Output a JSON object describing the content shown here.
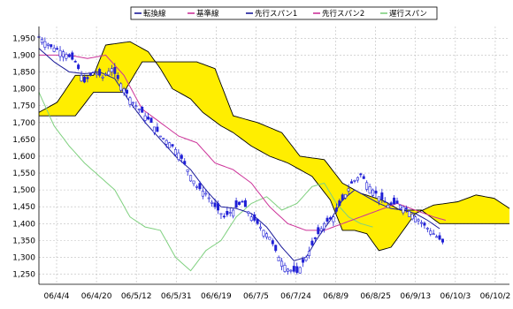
{
  "chart_data": {
    "type": "candlestick-ichimoku",
    "title": "",
    "xlabel": "",
    "ylabel": "",
    "ylim": [
      1220,
      1985
    ],
    "y_ticks": [
      1250,
      1300,
      1350,
      1400,
      1450,
      1500,
      1550,
      1600,
      1650,
      1700,
      1750,
      1800,
      1850,
      1900,
      1950
    ],
    "x_ticks": [
      "06/4/4",
      "06/4/20",
      "06/5/12",
      "06/5/31",
      "06/6/19",
      "06/7/5",
      "06/7/24",
      "06/8/9",
      "06/8/25",
      "06/9/13",
      "06/10/3",
      "06/10/2"
    ],
    "x_count": 155,
    "grid": true,
    "legend": {
      "placement": "top-center",
      "entries": [
        {
          "name": "転換線",
          "color": "#1a1a99"
        },
        {
          "name": "基準線",
          "color": "#cc3399"
        },
        {
          "name": "先行スパン1",
          "color": "#1a1a99"
        },
        {
          "name": "先行スパン2",
          "color": "#cc3399"
        },
        {
          "name": "遅行スパン",
          "color": "#7fd07f"
        }
      ]
    },
    "colors": {
      "candle": "#1f1fd6",
      "cloud_fill": "#ffee00",
      "cloud_edge": "#000000",
      "tenkan": "#1a1a99",
      "kijun": "#cc3399",
      "span2": "#cc3399",
      "chikou": "#7fd07f",
      "grid": "#bdbdbd"
    },
    "close_anchors": [
      [
        0,
        1955
      ],
      [
        4,
        1925
      ],
      [
        8,
        1910
      ],
      [
        12,
        1880
      ],
      [
        15,
        1820
      ],
      [
        18,
        1850
      ],
      [
        21,
        1835
      ],
      [
        24,
        1860
      ],
      [
        26,
        1830
      ],
      [
        28,
        1800
      ],
      [
        31,
        1760
      ],
      [
        34,
        1730
      ],
      [
        37,
        1700
      ],
      [
        40,
        1660
      ],
      [
        43,
        1640
      ],
      [
        46,
        1610
      ],
      [
        49,
        1560
      ],
      [
        52,
        1510
      ],
      [
        55,
        1490
      ],
      [
        58,
        1450
      ],
      [
        61,
        1420
      ],
      [
        64,
        1440
      ],
      [
        67,
        1465
      ],
      [
        70,
        1420
      ],
      [
        73,
        1390
      ],
      [
        76,
        1360
      ],
      [
        79,
        1300
      ],
      [
        82,
        1265
      ],
      [
        85,
        1255
      ],
      [
        88,
        1300
      ],
      [
        91,
        1355
      ],
      [
        94,
        1400
      ],
      [
        97,
        1420
      ],
      [
        100,
        1470
      ],
      [
        103,
        1520
      ],
      [
        106,
        1545
      ],
      [
        109,
        1510
      ],
      [
        112,
        1480
      ],
      [
        115,
        1455
      ],
      [
        118,
        1460
      ],
      [
        121,
        1445
      ],
      [
        124,
        1420
      ],
      [
        127,
        1395
      ],
      [
        130,
        1370
      ],
      [
        133,
        1345
      ]
    ],
    "span2_anchors": [
      [
        0,
        1720
      ],
      [
        12,
        1720
      ],
      [
        18,
        1790
      ],
      [
        28,
        1790
      ],
      [
        34,
        1880
      ],
      [
        52,
        1880
      ],
      [
        58,
        1860
      ],
      [
        64,
        1720
      ],
      [
        72,
        1700
      ],
      [
        80,
        1670
      ],
      [
        86,
        1600
      ],
      [
        94,
        1590
      ],
      [
        100,
        1520
      ],
      [
        106,
        1490
      ],
      [
        113,
        1470
      ],
      [
        119,
        1440
      ],
      [
        126,
        1440
      ],
      [
        132,
        1400
      ],
      [
        138,
        1400
      ],
      [
        146,
        1400
      ],
      [
        155,
        1400
      ]
    ],
    "span1_anchors": [
      [
        0,
        1730
      ],
      [
        6,
        1760
      ],
      [
        12,
        1840
      ],
      [
        18,
        1840
      ],
      [
        22,
        1930
      ],
      [
        30,
        1940
      ],
      [
        36,
        1910
      ],
      [
        40,
        1860
      ],
      [
        44,
        1800
      ],
      [
        50,
        1770
      ],
      [
        54,
        1730
      ],
      [
        60,
        1690
      ],
      [
        64,
        1670
      ],
      [
        70,
        1630
      ],
      [
        76,
        1600
      ],
      [
        82,
        1580
      ],
      [
        86,
        1560
      ],
      [
        90,
        1540
      ],
      [
        96,
        1470
      ],
      [
        100,
        1380
      ],
      [
        104,
        1380
      ],
      [
        108,
        1370
      ],
      [
        112,
        1320
      ],
      [
        116,
        1330
      ],
      [
        120,
        1380
      ],
      [
        124,
        1430
      ],
      [
        130,
        1455
      ],
      [
        138,
        1465
      ],
      [
        144,
        1485
      ],
      [
        150,
        1475
      ],
      [
        155,
        1445
      ]
    ],
    "tenkan_anchors": [
      [
        0,
        1920
      ],
      [
        5,
        1880
      ],
      [
        10,
        1850
      ],
      [
        15,
        1845
      ],
      [
        20,
        1850
      ],
      [
        25,
        1830
      ],
      [
        30,
        1760
      ],
      [
        35,
        1700
      ],
      [
        40,
        1650
      ],
      [
        45,
        1600
      ],
      [
        50,
        1560
      ],
      [
        55,
        1500
      ],
      [
        60,
        1450
      ],
      [
        65,
        1445
      ],
      [
        70,
        1430
      ],
      [
        75,
        1390
      ],
      [
        80,
        1330
      ],
      [
        84,
        1290
      ],
      [
        88,
        1300
      ],
      [
        92,
        1360
      ],
      [
        96,
        1410
      ],
      [
        100,
        1470
      ],
      [
        104,
        1500
      ],
      [
        108,
        1480
      ],
      [
        112,
        1460
      ],
      [
        116,
        1445
      ],
      [
        120,
        1440
      ],
      [
        124,
        1430
      ],
      [
        128,
        1410
      ],
      [
        132,
        1385
      ]
    ],
    "kijun_anchors": [
      [
        0,
        1900
      ],
      [
        10,
        1900
      ],
      [
        16,
        1890
      ],
      [
        22,
        1900
      ],
      [
        28,
        1840
      ],
      [
        34,
        1740
      ],
      [
        40,
        1700
      ],
      [
        46,
        1660
      ],
      [
        52,
        1640
      ],
      [
        58,
        1580
      ],
      [
        64,
        1560
      ],
      [
        70,
        1520
      ],
      [
        76,
        1450
      ],
      [
        82,
        1400
      ],
      [
        88,
        1380
      ],
      [
        94,
        1380
      ],
      [
        100,
        1400
      ],
      [
        106,
        1420
      ],
      [
        112,
        1440
      ],
      [
        118,
        1460
      ],
      [
        124,
        1440
      ],
      [
        130,
        1420
      ],
      [
        134,
        1410
      ]
    ],
    "chikou_anchors": [
      [
        0,
        1790
      ],
      [
        5,
        1690
      ],
      [
        10,
        1630
      ],
      [
        15,
        1580
      ],
      [
        20,
        1540
      ],
      [
        25,
        1500
      ],
      [
        30,
        1420
      ],
      [
        35,
        1390
      ],
      [
        40,
        1380
      ],
      [
        45,
        1300
      ],
      [
        50,
        1260
      ],
      [
        55,
        1320
      ],
      [
        60,
        1350
      ],
      [
        65,
        1420
      ],
      [
        70,
        1460
      ],
      [
        75,
        1480
      ],
      [
        80,
        1440
      ],
      [
        85,
        1460
      ],
      [
        90,
        1510
      ],
      [
        94,
        1520
      ],
      [
        98,
        1460
      ],
      [
        102,
        1420
      ],
      [
        106,
        1400
      ],
      [
        110,
        1390
      ]
    ]
  }
}
